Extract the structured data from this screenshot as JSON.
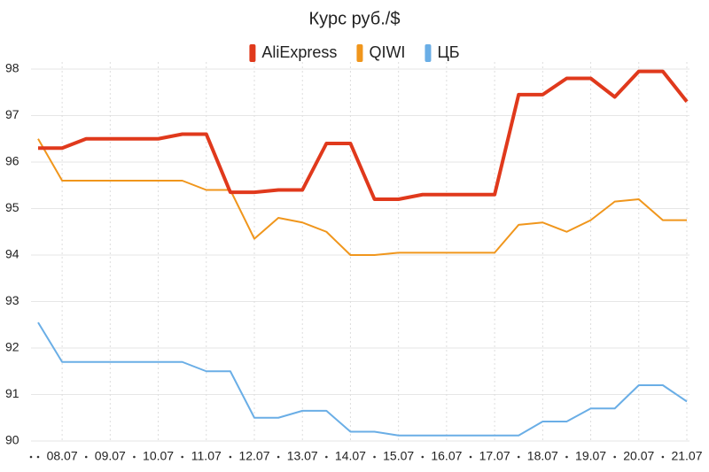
{
  "chart_data": {
    "type": "line",
    "title": "Курс руб./$",
    "categories": [
      null,
      "08.07",
      null,
      "09.07",
      null,
      "10.07",
      null,
      "11.07",
      null,
      "12.07",
      null,
      "13.07",
      null,
      "14.07",
      null,
      "15.07",
      null,
      "16.07",
      null,
      "17.07",
      null,
      "18.07",
      null,
      "19.07",
      null,
      "20.07",
      null,
      "21.07"
    ],
    "series": [
      {
        "name": "AliExpress",
        "color": "#e0391c",
        "width": 4,
        "values": [
          96.3,
          96.3,
          96.5,
          96.5,
          96.5,
          96.5,
          96.6,
          96.6,
          95.35,
          95.35,
          95.4,
          95.4,
          96.4,
          96.4,
          95.2,
          95.2,
          95.3,
          95.3,
          95.3,
          95.3,
          97.45,
          97.45,
          97.8,
          97.8,
          97.4,
          97.95,
          97.95,
          97.3
        ]
      },
      {
        "name": "QIWI",
        "color": "#f0961c",
        "width": 2,
        "values": [
          96.5,
          95.6,
          95.6,
          95.6,
          95.6,
          95.6,
          95.6,
          95.4,
          95.4,
          94.35,
          94.8,
          94.7,
          94.5,
          94.0,
          94.0,
          94.05,
          94.05,
          94.05,
          94.05,
          94.05,
          94.65,
          94.7,
          94.5,
          94.75,
          95.15,
          95.2,
          94.75,
          94.75
        ]
      },
      {
        "name": "ЦБ",
        "color": "#6aaee6",
        "width": 2,
        "values": [
          92.55,
          91.7,
          91.7,
          91.7,
          91.7,
          91.7,
          91.7,
          91.5,
          91.5,
          90.5,
          90.5,
          90.65,
          90.65,
          90.2,
          90.2,
          90.12,
          90.12,
          90.12,
          90.12,
          90.12,
          90.12,
          90.42,
          90.42,
          90.7,
          90.7,
          91.2,
          91.2,
          90.85
        ]
      }
    ],
    "ylim": [
      90,
      98
    ],
    "yticks": [
      90,
      91,
      92,
      93,
      94,
      95,
      96,
      97,
      98
    ],
    "grid": true
  }
}
